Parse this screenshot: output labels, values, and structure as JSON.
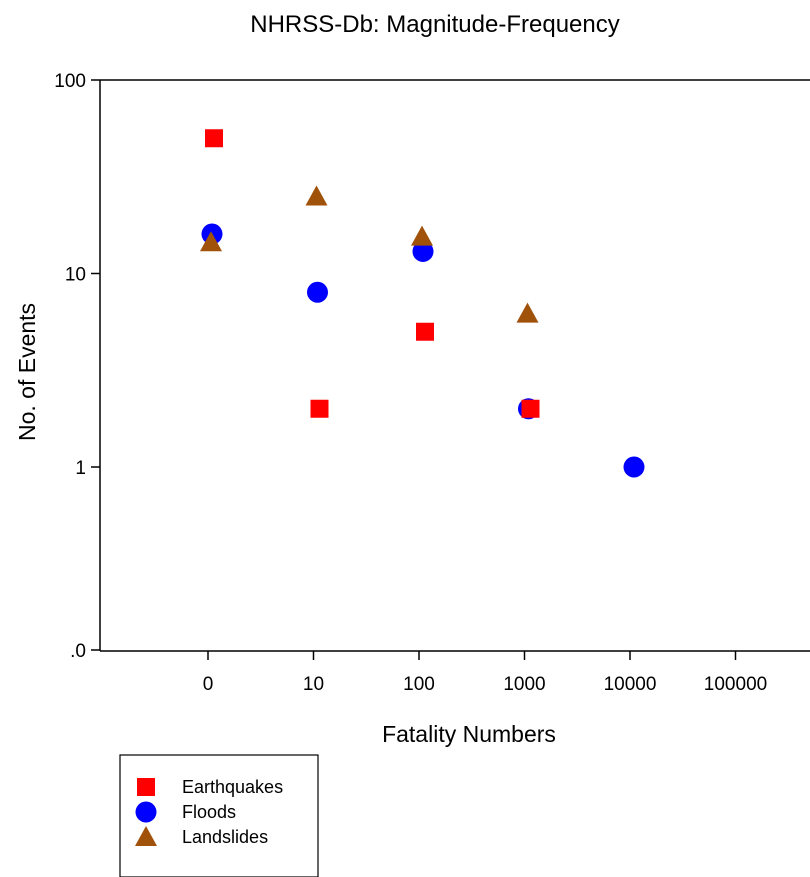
{
  "chart_data": {
    "type": "scatter",
    "title": "NHRSS-Db: Magnitude-Frequency",
    "xlabel": "Fatality Numbers",
    "ylabel": "No. of Events",
    "x_scale": "log",
    "y_scale": "log",
    "x_ticks": [
      "0",
      "10",
      "100",
      "1000",
      "10000",
      "100000"
    ],
    "y_ticks": [
      ".0",
      "1",
      "10",
      "100"
    ],
    "grid": false,
    "legend_position": "bottom-left",
    "series": [
      {
        "name": "Earthquakes",
        "marker": "square",
        "color": "#ff0000",
        "x": [
          1,
          10,
          100,
          1000
        ],
        "y": [
          50,
          2,
          5,
          2
        ]
      },
      {
        "name": "Floods",
        "marker": "circle",
        "color": "#0000ff",
        "x": [
          1,
          10,
          100,
          1000,
          10000
        ],
        "y": [
          16,
          8,
          13,
          2,
          1
        ]
      },
      {
        "name": "Landslides",
        "marker": "triangle",
        "color": "#a0520a",
        "x": [
          1,
          10,
          100,
          1000
        ],
        "y": [
          14.5,
          25,
          15.5,
          6.2
        ]
      }
    ]
  }
}
